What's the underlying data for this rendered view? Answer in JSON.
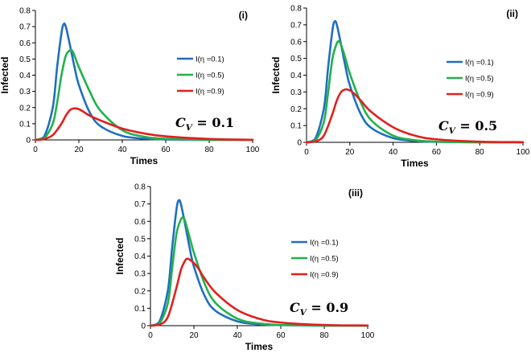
{
  "chart_data": [
    {
      "type": "line",
      "panel_label": "(i)",
      "cv_label": {
        "symbol": "C",
        "subscript": "V",
        "equals": "=",
        "value": "0.1"
      },
      "xlabel": "Times",
      "ylabel": "Infected",
      "xlim": [
        0,
        100
      ],
      "ylim": [
        0,
        0.8
      ],
      "xticks": [
        "0",
        "20",
        "40",
        "60",
        "80",
        "100"
      ],
      "yticks": [
        "0",
        "0.1",
        "0.2",
        "0.3",
        "0.4",
        "0.5",
        "0.6",
        "0.7",
        "0.8"
      ],
      "legend": [
        "I(η =0.1)",
        "I(η =0.5)",
        "I(η =0.9)"
      ],
      "series": [
        {
          "name": "I(η =0.1)",
          "color": "#1f6fbf",
          "x": [
            0,
            4,
            8,
            10,
            12,
            13,
            14,
            16,
            18,
            20,
            25,
            30,
            40,
            50,
            60,
            80,
            100
          ],
          "y": [
            0,
            0.02,
            0.2,
            0.45,
            0.66,
            0.715,
            0.7,
            0.58,
            0.45,
            0.34,
            0.17,
            0.085,
            0.025,
            0.008,
            0.003,
            0.0003,
            0
          ]
        },
        {
          "name": "I(η =0.5)",
          "color": "#22b14c",
          "x": [
            0,
            4,
            8,
            10,
            12,
            14,
            16,
            17,
            18,
            20,
            25,
            30,
            40,
            50,
            60,
            80,
            100
          ],
          "y": [
            0,
            0.01,
            0.1,
            0.23,
            0.4,
            0.52,
            0.555,
            0.55,
            0.52,
            0.45,
            0.3,
            0.18,
            0.06,
            0.02,
            0.007,
            0.001,
            0
          ]
        },
        {
          "name": "I(η =0.9)",
          "color": "#e0201e",
          "x": [
            0,
            4,
            8,
            12,
            14,
            16,
            18,
            20,
            22,
            25,
            30,
            40,
            50,
            60,
            80,
            100
          ],
          "y": [
            0,
            0.005,
            0.03,
            0.1,
            0.15,
            0.185,
            0.195,
            0.19,
            0.175,
            0.15,
            0.12,
            0.07,
            0.04,
            0.022,
            0.006,
            0.001
          ]
        }
      ]
    },
    {
      "type": "line",
      "panel_label": "(ii)",
      "cv_label": {
        "symbol": "C",
        "subscript": "V",
        "equals": "=",
        "value": "0.5"
      },
      "xlabel": "Times",
      "ylabel": "Infected",
      "xlim": [
        0,
        100
      ],
      "ylim": [
        0,
        0.8
      ],
      "xticks": [
        "0",
        "20",
        "40",
        "60",
        "80",
        "100"
      ],
      "yticks": [
        "0",
        "0.1",
        "0.2",
        "0.3",
        "0.4",
        "0.5",
        "0.6",
        "0.7",
        "0.8"
      ],
      "legend": [
        "I(η =0.1)",
        "I(η =0.5)",
        "I(η =0.9)"
      ],
      "series": [
        {
          "name": "I(η =0.1)",
          "color": "#1f6fbf",
          "x": [
            0,
            4,
            8,
            10,
            12,
            13,
            14,
            16,
            18,
            20,
            25,
            30,
            40,
            50,
            60,
            80,
            100
          ],
          "y": [
            0,
            0.02,
            0.2,
            0.45,
            0.67,
            0.72,
            0.7,
            0.58,
            0.45,
            0.34,
            0.17,
            0.085,
            0.025,
            0.008,
            0.003,
            0.0003,
            0
          ]
        },
        {
          "name": "I(η =0.5)",
          "color": "#22b14c",
          "x": [
            0,
            4,
            8,
            10,
            12,
            14,
            15,
            16,
            18,
            20,
            25,
            30,
            40,
            50,
            60,
            80,
            100
          ],
          "y": [
            0,
            0.01,
            0.12,
            0.3,
            0.5,
            0.59,
            0.6,
            0.58,
            0.5,
            0.41,
            0.24,
            0.13,
            0.04,
            0.013,
            0.004,
            0.0005,
            0
          ]
        },
        {
          "name": "I(η =0.9)",
          "color": "#e0201e",
          "x": [
            0,
            4,
            8,
            12,
            14,
            16,
            18,
            20,
            22,
            25,
            30,
            40,
            50,
            60,
            80,
            100
          ],
          "y": [
            0,
            0.005,
            0.04,
            0.17,
            0.25,
            0.3,
            0.315,
            0.31,
            0.29,
            0.25,
            0.18,
            0.09,
            0.04,
            0.018,
            0.004,
            0.001
          ]
        }
      ]
    },
    {
      "type": "line",
      "panel_label": "(iii)",
      "cv_label": {
        "symbol": "C",
        "subscript": "V",
        "equals": "=",
        "value": "0.9"
      },
      "xlabel": "Times",
      "ylabel": "Infected",
      "xlim": [
        0,
        100
      ],
      "ylim": [
        0,
        0.8
      ],
      "xticks": [
        "0",
        "20",
        "40",
        "60",
        "80",
        "100"
      ],
      "yticks": [
        "0",
        "0.1",
        "0.2",
        "0.3",
        "0.4",
        "0.5",
        "0.6",
        "0.7",
        "0.8"
      ],
      "legend": [
        "I(η =0.1)",
        "I(η =0.5)",
        "I(η =0.9)"
      ],
      "series": [
        {
          "name": "I(η =0.1)",
          "color": "#1f6fbf",
          "x": [
            0,
            4,
            8,
            10,
            12,
            13,
            14,
            16,
            18,
            20,
            25,
            30,
            40,
            50,
            60,
            80,
            100
          ],
          "y": [
            0,
            0.02,
            0.2,
            0.45,
            0.67,
            0.72,
            0.7,
            0.58,
            0.45,
            0.34,
            0.17,
            0.085,
            0.025,
            0.008,
            0.003,
            0.0003,
            0
          ]
        },
        {
          "name": "I(η =0.5)",
          "color": "#22b14c",
          "x": [
            0,
            4,
            8,
            10,
            12,
            14,
            15,
            16,
            18,
            20,
            25,
            30,
            40,
            50,
            60,
            80,
            100
          ],
          "y": [
            0,
            0.01,
            0.13,
            0.33,
            0.53,
            0.61,
            0.62,
            0.6,
            0.51,
            0.42,
            0.24,
            0.13,
            0.04,
            0.013,
            0.004,
            0.0005,
            0
          ]
        },
        {
          "name": "I(η =0.9)",
          "color": "#e0201e",
          "x": [
            0,
            4,
            8,
            12,
            14,
            16,
            17,
            18,
            20,
            22,
            25,
            30,
            40,
            50,
            60,
            80,
            100
          ],
          "y": [
            0,
            0.005,
            0.05,
            0.22,
            0.32,
            0.375,
            0.385,
            0.38,
            0.36,
            0.33,
            0.27,
            0.19,
            0.09,
            0.04,
            0.018,
            0.004,
            0.001
          ]
        }
      ]
    }
  ]
}
